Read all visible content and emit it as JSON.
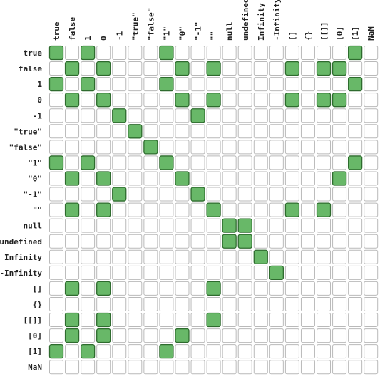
{
  "chart_data": {
    "type": "heatmap",
    "title": "",
    "xlabel": "",
    "ylabel": "",
    "labels": [
      "true",
      "false",
      "1",
      "0",
      "-1",
      "\"true\"",
      "\"false\"",
      "\"1\"",
      "\"0\"",
      "\"-1\"",
      "\"\"",
      "null",
      "undefined",
      "Infinity",
      "-Infinity",
      "[]",
      "{}",
      "[[]]",
      "[0]",
      "[1]",
      "NaN"
    ],
    "rows": [
      "101000010000000000010",
      "010100001010000101100",
      "101000010000000000010",
      "010100001010000101100",
      "000010000100000000000",
      "000001000000000000000",
      "000000100000000000000",
      "101000010000000000010",
      "010100001000000000100",
      "000010000100000000000",
      "010100000010000101000",
      "000000000001100000000",
      "000000000001100000000",
      "000000000000010000000",
      "000000000000001000000",
      "010100000010000000000",
      "000000000000000000000",
      "010100000010000000000",
      "010100001000000000000",
      "101000010000000000000",
      "000000000000000000000"
    ],
    "colors": {
      "match_fill": "#68b868",
      "match_border": "#2e6b2e",
      "empty_fill": "#ffffff",
      "empty_border": "#b9b9b9",
      "label_text": "#222222"
    }
  }
}
